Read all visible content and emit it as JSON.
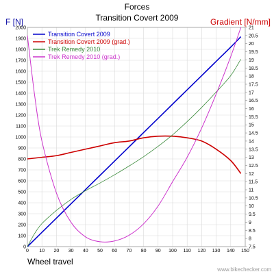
{
  "chart_data": {
    "type": "line",
    "title": "Forces",
    "subtitle": "Transition Covert 2009",
    "xlabel": "Wheel travel",
    "ylabel_left": "F [N]",
    "ylabel_right": "Gradient [N/mm]",
    "watermark": "www.bikechecker.com",
    "xlim": [
      0,
      150
    ],
    "ylim_left": [
      0,
      2000
    ],
    "ylim_right": [
      7.5,
      21
    ],
    "grid": true,
    "legend_position": "top-left",
    "x_ticks": [
      "0",
      "10",
      "20",
      "30",
      "40",
      "50",
      "60",
      "70",
      "80",
      "90",
      "100",
      "110",
      "120",
      "130",
      "140",
      "150"
    ],
    "y_left_ticks": [
      "0",
      "100",
      "200",
      "300",
      "400",
      "500",
      "600",
      "700",
      "800",
      "900",
      "1000",
      "1100",
      "1200",
      "1300",
      "1400",
      "1500",
      "1600",
      "1700",
      "1800",
      "1900",
      "2000"
    ],
    "y_right_ticks": [
      "7.5",
      "8",
      "8.5",
      "9",
      "9.5",
      "10",
      "10.5",
      "11",
      "11.5",
      "12",
      "12.5",
      "13",
      "13.5",
      "14",
      "14.5",
      "15",
      "15.5",
      "16",
      "16.5",
      "17",
      "17.5",
      "18",
      "18.5",
      "19",
      "19.5",
      "20",
      "20.5",
      "21"
    ],
    "series": [
      {
        "name": "Transition Covert 2009",
        "axis": "left",
        "color": "#0000cc",
        "width": 1.6,
        "x": [
          0,
          10,
          20,
          30,
          40,
          50,
          60,
          70,
          80,
          90,
          100,
          110,
          120,
          130,
          140,
          147
        ],
        "values": [
          0,
          130,
          260,
          390,
          520,
          650,
          780,
          910,
          1040,
          1170,
          1300,
          1430,
          1560,
          1690,
          1820,
          1915
        ]
      },
      {
        "name": "Transition Covert 2009 (grad.)",
        "axis": "right",
        "color": "#cc0000",
        "width": 1.6,
        "x": [
          0,
          10,
          20,
          30,
          40,
          50,
          60,
          70,
          80,
          90,
          100,
          110,
          120,
          130,
          140,
          147
        ],
        "values": [
          12.9,
          13.0,
          13.1,
          13.3,
          13.5,
          13.7,
          13.9,
          14.0,
          14.2,
          14.3,
          14.3,
          14.2,
          14.0,
          13.5,
          12.8,
          12.0
        ]
      },
      {
        "name": "Trek Remedy 2010",
        "axis": "left",
        "color": "#3a8a3a",
        "width": 0.8,
        "x": [
          0,
          5,
          10,
          20,
          30,
          40,
          50,
          60,
          70,
          80,
          90,
          100,
          110,
          120,
          130,
          140,
          147
        ],
        "values": [
          0,
          120,
          210,
          330,
          430,
          510,
          580,
          655,
          735,
          820,
          915,
          1020,
          1140,
          1270,
          1410,
          1560,
          1710
        ]
      },
      {
        "name": "Trek Remedy 2010 (grad.)",
        "axis": "right",
        "color": "#cc33cc",
        "width": 1.0,
        "x": [
          0,
          5,
          10,
          20,
          30,
          40,
          50,
          60,
          70,
          80,
          90,
          100,
          110,
          120,
          130,
          140,
          147
        ],
        "values": [
          20.5,
          16.8,
          14.0,
          10.8,
          9.0,
          8.1,
          7.8,
          7.85,
          8.2,
          8.9,
          10.0,
          11.5,
          13.0,
          14.8,
          16.9,
          19.2,
          21.0
        ]
      }
    ]
  }
}
